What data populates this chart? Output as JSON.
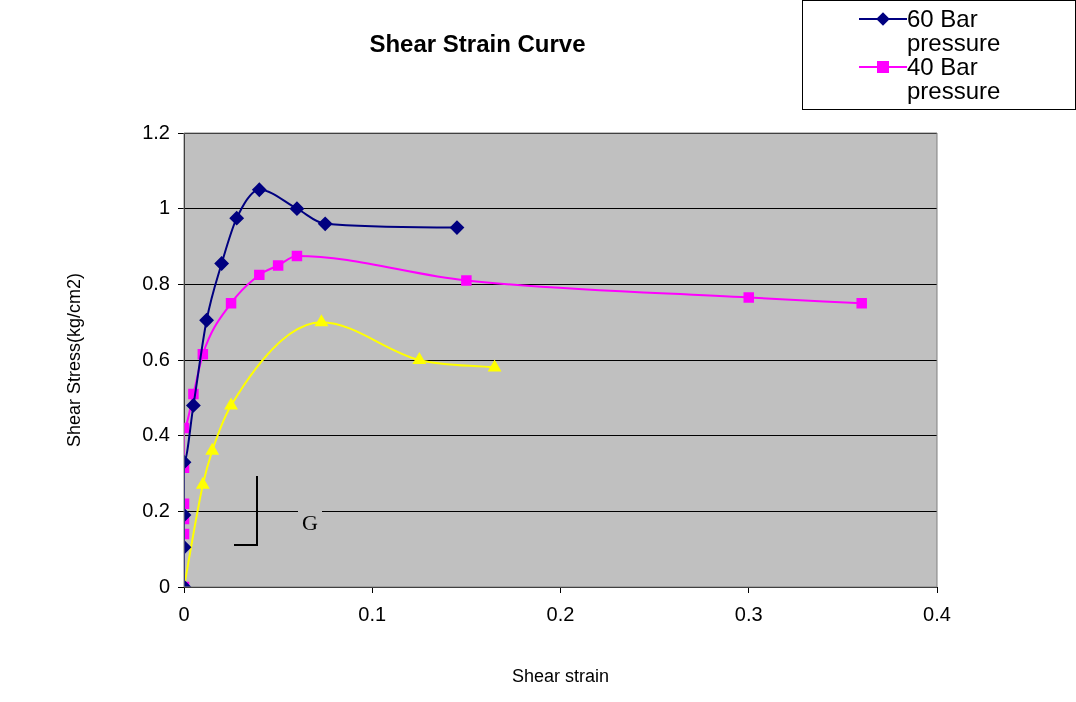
{
  "chart_data": {
    "type": "line",
    "title": "Shear Strain Curve",
    "xlabel": "Shear strain",
    "ylabel": "Shear Stress(kg/cm2)",
    "annotations": [
      "G"
    ],
    "xlim": [
      0,
      0.4
    ],
    "xticks": [
      0,
      0.1,
      0.2,
      0.3,
      0.4
    ],
    "ylim": [
      0,
      1.2
    ],
    "yticks": [
      0,
      0.2,
      0.4,
      0.6,
      0.8,
      1,
      1.2
    ],
    "grid": "y",
    "legend": "top right",
    "series": [
      {
        "name": "60 Bar pressure",
        "color": "#000080",
        "marker": "diamond",
        "x": [
          0,
          0,
          0,
          0,
          0.005,
          0.012,
          0.02,
          0.028,
          0.04,
          0.06,
          0.075,
          0.145
        ],
        "values": [
          0,
          0.105,
          0.19,
          0.33,
          0.48,
          0.705,
          0.855,
          0.975,
          1.05,
          1.0,
          0.96,
          0.95
        ]
      },
      {
        "name": "40 Bar pressure",
        "color": "#ff00ff",
        "marker": "square",
        "x": [
          0,
          0,
          0,
          0,
          0,
          0,
          0.005,
          0.01,
          0.025,
          0.04,
          0.05,
          0.06,
          0.15,
          0.3,
          0.36
        ],
        "values": [
          0,
          0.14,
          0.18,
          0.22,
          0.315,
          0.42,
          0.51,
          0.615,
          0.75,
          0.825,
          0.85,
          0.875,
          0.81,
          0.765,
          0.75
        ]
      },
      {
        "color": "#ffff00",
        "marker": "triangle",
        "x": [
          0,
          0.01,
          0.015,
          0.025,
          0.073,
          0.125,
          0.165
        ],
        "values": [
          0,
          0.27,
          0.36,
          0.48,
          0.7,
          0.6,
          0.58
        ]
      }
    ]
  }
}
